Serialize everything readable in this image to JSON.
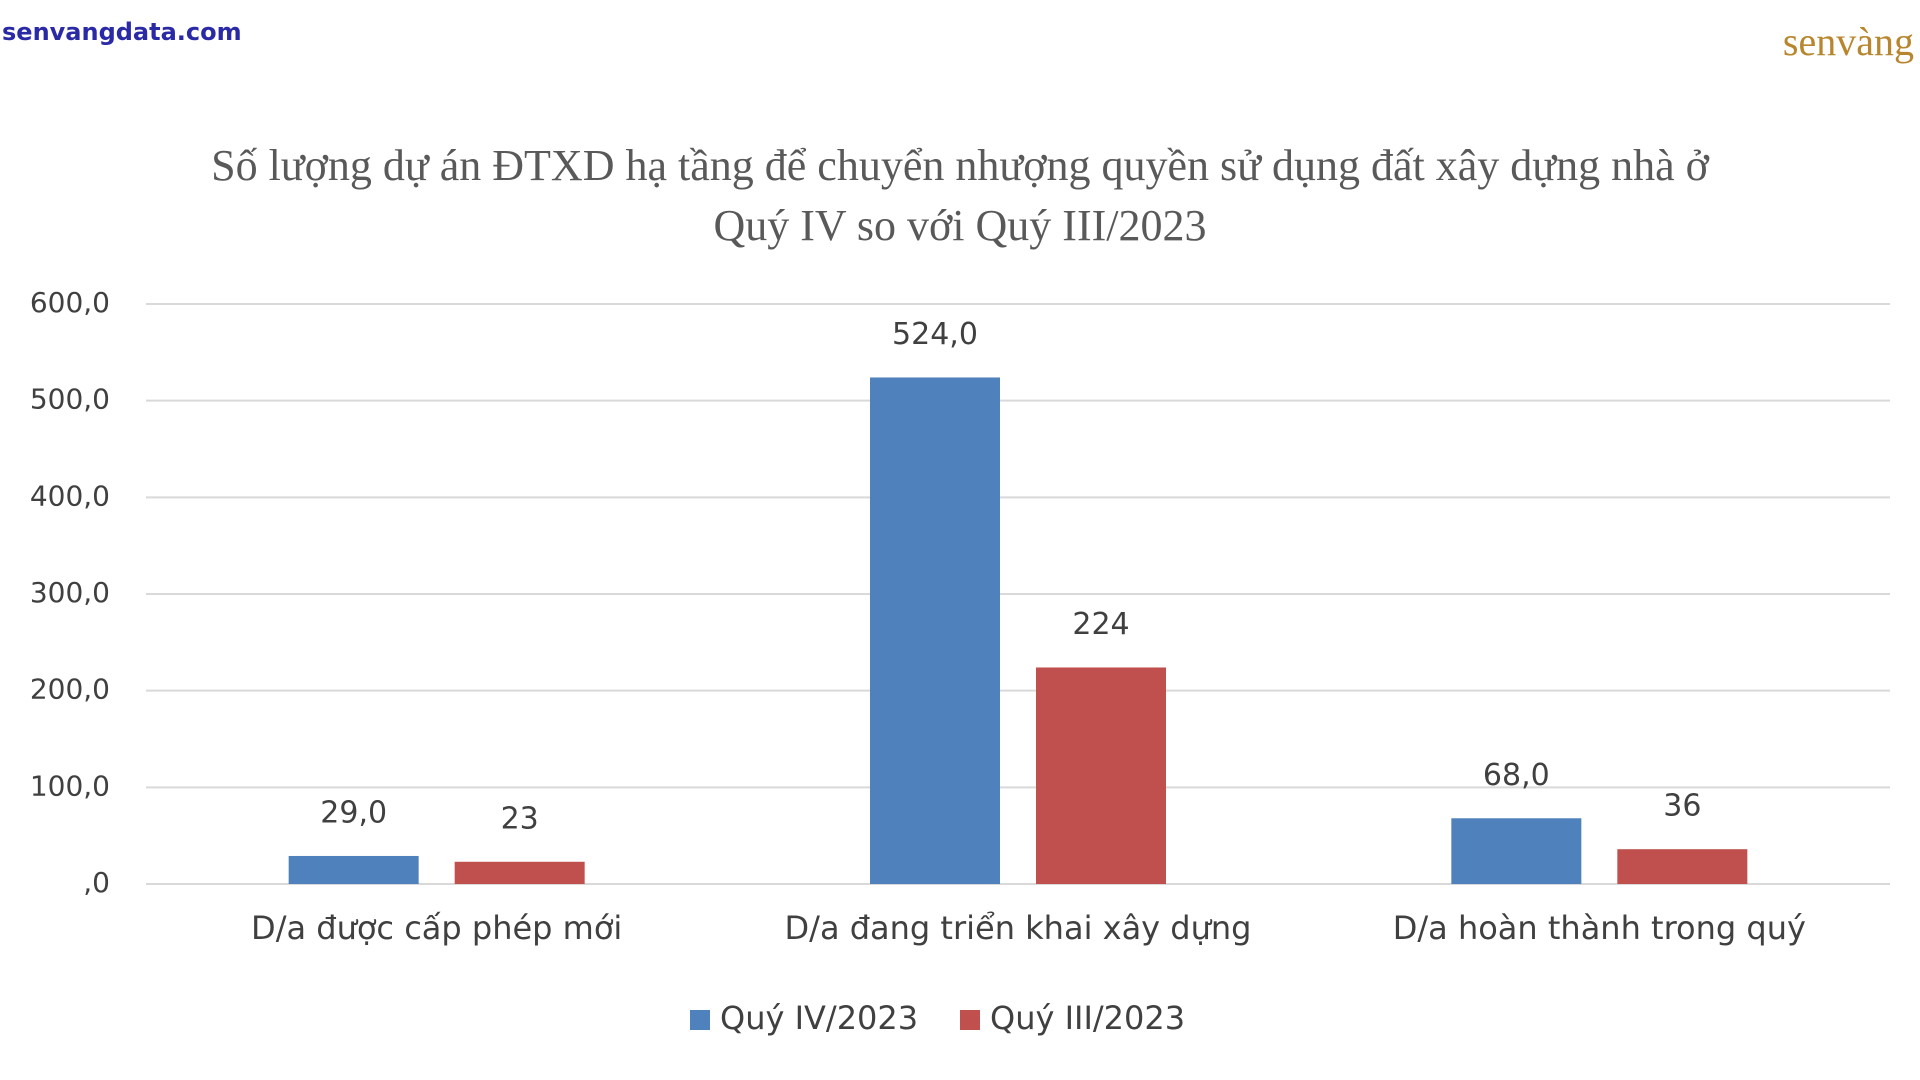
{
  "header": {
    "site": "senvangdata.com",
    "logo": "senvàng"
  },
  "chart_data": {
    "type": "bar",
    "title": "Số lượng dự án ĐTXD hạ tầng để chuyển nhượng quyền sử dụng đất xây dựng nhà ở Quý IV so với Quý III/2023",
    "categories": [
      "D/a được cấp phép mới",
      "D/a đang triển khai xây dựng",
      "D/a hoàn thành trong quý"
    ],
    "series": [
      {
        "name": "Quý IV/2023",
        "color": "#4f81bd",
        "values": [
          29,
          524,
          68
        ],
        "value_labels": [
          "29,0",
          "524,0",
          "68,0"
        ]
      },
      {
        "name": "Quý III/2023",
        "color": "#c0504d",
        "values": [
          23,
          224,
          36
        ]
      }
    ],
    "ylim": [
      0,
      600
    ],
    "yticks": [
      {
        "value": 0,
        "label": ",0"
      },
      {
        "value": 100,
        "label": "100,0"
      },
      {
        "value": 200,
        "label": "200,0"
      },
      {
        "value": 300,
        "label": "300,0"
      },
      {
        "value": 400,
        "label": "400,0"
      },
      {
        "value": 500,
        "label": "500,0"
      },
      {
        "value": 600,
        "label": "600,0"
      }
    ],
    "grid": true,
    "legend": "bottom"
  }
}
